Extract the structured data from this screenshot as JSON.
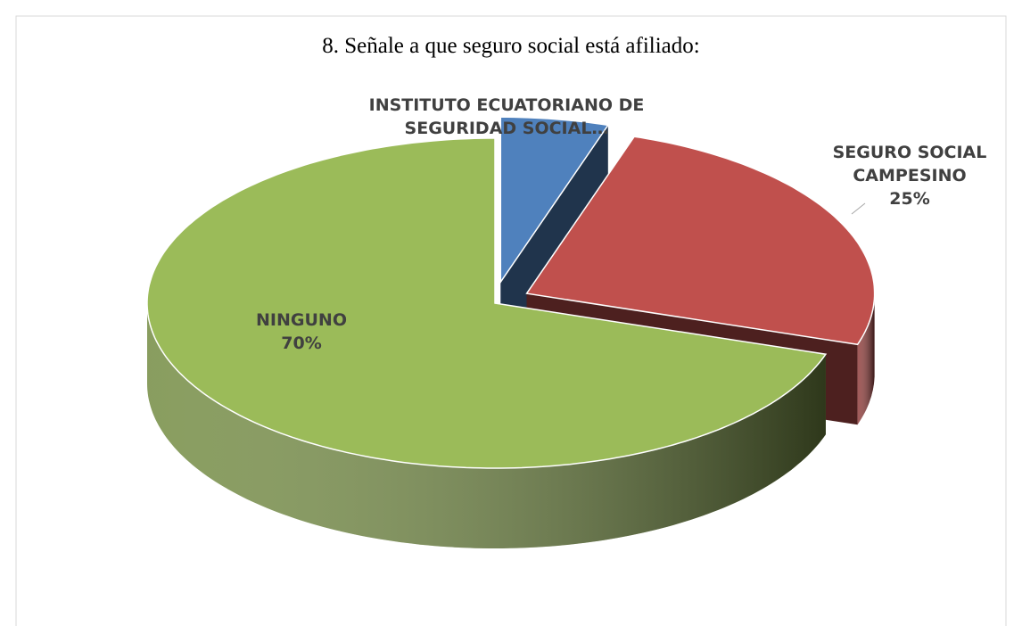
{
  "chart_data": {
    "type": "pie3d",
    "title": "8. Señale a que seguro social está afiliado:",
    "categories": [
      "INSTITUTO ECUATORIANO DE SEGURIDAD SOCIAL…",
      "SEGURO SOCIAL CAMPESINO",
      "NINGUNO"
    ],
    "values": [
      5,
      25,
      70
    ],
    "value_labels": [
      null,
      "25%",
      "70%"
    ],
    "colors": [
      "#4f81bd",
      "#c0504d",
      "#9bbb59"
    ]
  }
}
